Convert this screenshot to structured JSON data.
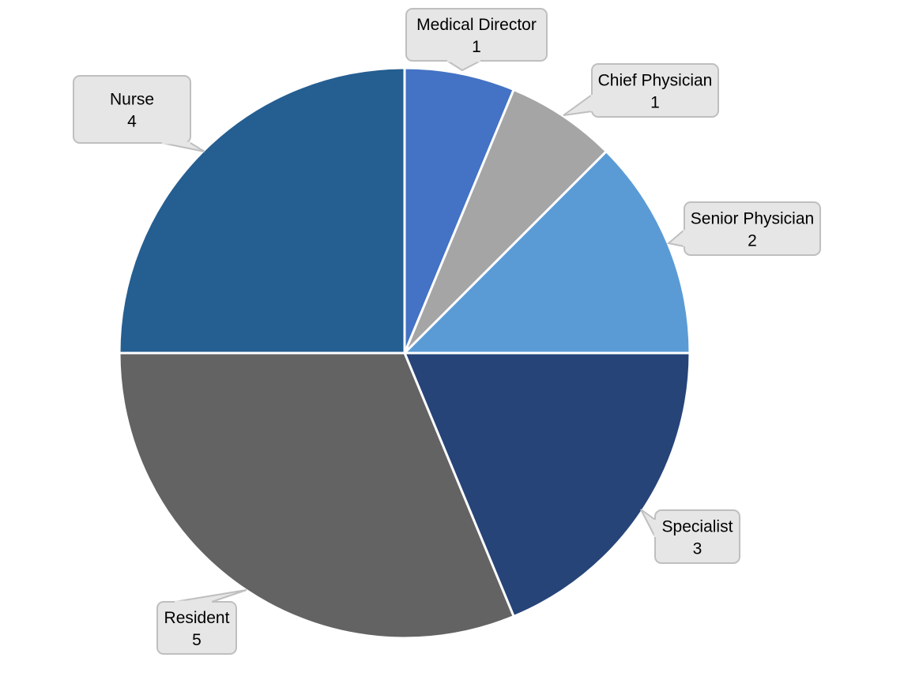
{
  "chart_data": {
    "type": "pie",
    "title": "",
    "start_angle_deg": 0,
    "direction": "clockwise",
    "legend": "none",
    "data_labels": "callout",
    "slices": [
      {
        "label": "Medical Director",
        "value": 1,
        "color": "#4472c4"
      },
      {
        "label": "Chief Physician",
        "value": 1,
        "color": "#a5a5a5"
      },
      {
        "label": "Senior Physician",
        "value": 2,
        "color": "#5b9bd5"
      },
      {
        "label": "Specialist",
        "value": 3,
        "color": "#264478"
      },
      {
        "label": "Resident",
        "value": 5,
        "color": "#636363"
      },
      {
        "label": "Nurse",
        "value": 4,
        "color": "#255e91"
      }
    ]
  }
}
